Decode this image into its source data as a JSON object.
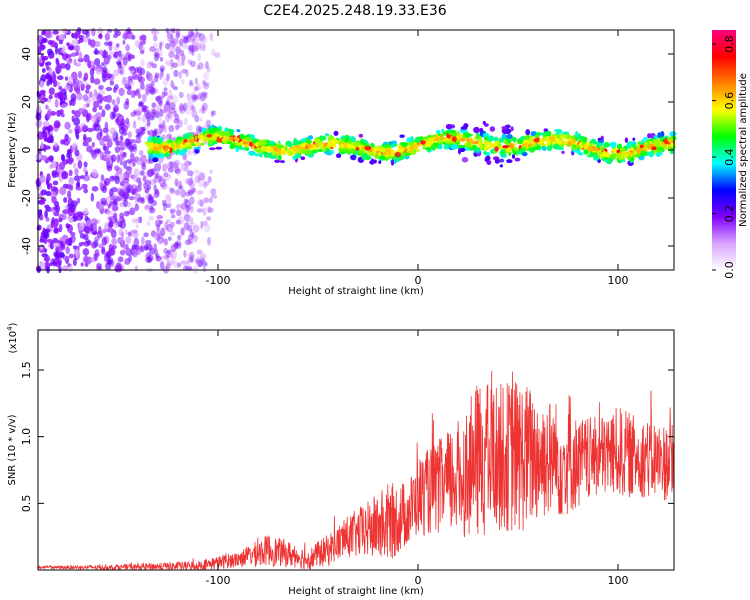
{
  "title": "C2E4.2025.248.19.33.E36",
  "chart_data": [
    {
      "type": "heatmap",
      "panel": "spectrogram",
      "xlabel": "Height of straight line (km)",
      "ylabel": "Frequency (Hz)",
      "xlim": [
        -190,
        128
      ],
      "ylim": [
        -50,
        50
      ],
      "x_ticks": [
        -100,
        0,
        100
      ],
      "x_tick_labels": [
        "-100",
        "0",
        "100"
      ],
      "y_ticks": [
        -40,
        -20,
        0,
        20,
        40
      ],
      "y_tick_labels": [
        "-40",
        "-20",
        "0",
        "20",
        "40"
      ],
      "description_band": {
        "center_hz": 2,
        "half_width_hz": 6,
        "x_start_km": -135,
        "x_end_km": 128
      },
      "noise_region_km": [
        -190,
        -100
      ],
      "colorbar": {
        "label": "Normalized spectral amplitude",
        "range": [
          0.0,
          0.85
        ],
        "ticks": [
          0.0,
          0.2,
          0.4,
          0.6,
          0.8
        ],
        "tick_labels": [
          "0.0",
          "0.2",
          "0.4",
          "0.6",
          "0.8"
        ],
        "colors": [
          "#ffffff",
          "#d9a3ff",
          "#8000ff",
          "#0000ff",
          "#00ffff",
          "#00ff00",
          "#ffff00",
          "#ff8000",
          "#ff0000",
          "#ff0080"
        ]
      }
    },
    {
      "type": "line",
      "panel": "snr",
      "xlabel": "Height of straight line (km)",
      "ylabel": "SNR (10 * v/v)",
      "multiplier_label": "(x10",
      "multiplier_exp": "4",
      "multiplier_close": ")",
      "xlim": [
        -190,
        128
      ],
      "ylim": [
        0,
        1.8
      ],
      "x_ticks": [
        -100,
        0,
        100
      ],
      "x_tick_labels": [
        "-100",
        "0",
        "100"
      ],
      "y_ticks": [
        0.5,
        1.0,
        1.5
      ],
      "y_tick_labels": [
        "0.5",
        "1.0",
        "1.5"
      ],
      "color": "#ee3333",
      "envelope": {
        "x": [
          -190,
          -150,
          -110,
          -90,
          -75,
          -65,
          -55,
          -45,
          -35,
          -25,
          -15,
          -5,
          0,
          10,
          20,
          25,
          30,
          40,
          50,
          60,
          70,
          80,
          90,
          100,
          110,
          120,
          128
        ],
        "mean": [
          0.02,
          0.02,
          0.03,
          0.08,
          0.15,
          0.12,
          0.08,
          0.15,
          0.25,
          0.3,
          0.35,
          0.42,
          0.55,
          0.62,
          0.68,
          0.75,
          0.82,
          0.85,
          0.85,
          0.85,
          0.82,
          0.8,
          0.85,
          0.88,
          0.85,
          0.82,
          0.8
        ],
        "amp": [
          0.01,
          0.02,
          0.04,
          0.06,
          0.12,
          0.1,
          0.08,
          0.12,
          0.16,
          0.22,
          0.3,
          0.25,
          0.3,
          0.35,
          0.45,
          0.5,
          0.6,
          0.55,
          0.6,
          0.5,
          0.45,
          0.35,
          0.3,
          0.35,
          0.3,
          0.3,
          0.3
        ]
      }
    }
  ]
}
